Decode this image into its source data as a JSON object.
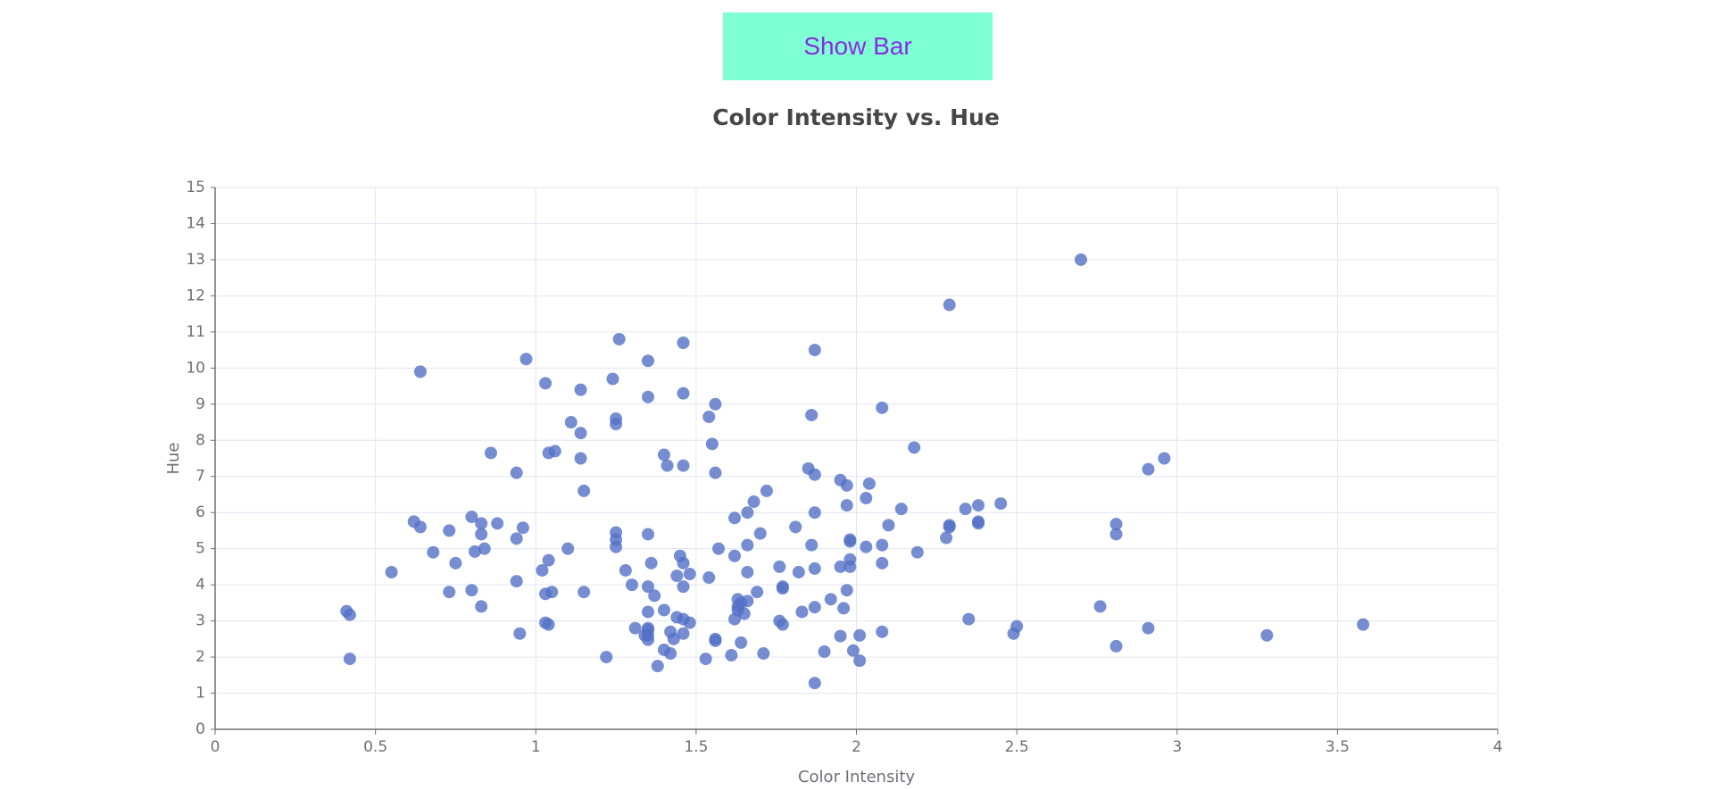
{
  "toggle_button": {
    "label": "Show Bar"
  },
  "chart_data": {
    "type": "scatter",
    "title": "Color Intensity vs. Hue",
    "xlabel": "Color Intensity",
    "ylabel": "Hue",
    "xlim": [
      0,
      4
    ],
    "ylim": [
      0,
      15
    ],
    "xticks": [
      "0",
      "0.5",
      "1",
      "1.5",
      "2",
      "2.5",
      "3",
      "3.5",
      "4"
    ],
    "yticks": [
      "0",
      "1",
      "2",
      "3",
      "4",
      "5",
      "6",
      "7",
      "8",
      "9",
      "10",
      "11",
      "12",
      "13",
      "14",
      "15"
    ],
    "grid": true,
    "point_color": "#5470c6",
    "points": [
      [
        0.41,
        3.27
      ],
      [
        0.42,
        3.17
      ],
      [
        0.42,
        1.95
      ],
      [
        0.55,
        4.35
      ],
      [
        0.62,
        5.75
      ],
      [
        0.64,
        9.9
      ],
      [
        0.64,
        5.6
      ],
      [
        0.68,
        4.9
      ],
      [
        0.73,
        5.5
      ],
      [
        0.73,
        3.8
      ],
      [
        0.75,
        4.6
      ],
      [
        0.8,
        5.88
      ],
      [
        0.8,
        3.85
      ],
      [
        0.81,
        4.92
      ],
      [
        0.83,
        5.7
      ],
      [
        0.83,
        5.4
      ],
      [
        0.83,
        3.4
      ],
      [
        0.84,
        5.0
      ],
      [
        0.86,
        7.65
      ],
      [
        0.88,
        5.7
      ],
      [
        0.94,
        7.1
      ],
      [
        0.94,
        5.28
      ],
      [
        0.94,
        4.1
      ],
      [
        0.95,
        2.65
      ],
      [
        0.96,
        5.58
      ],
      [
        0.97,
        10.25
      ],
      [
        1.02,
        4.4
      ],
      [
        1.03,
        9.58
      ],
      [
        1.03,
        3.75
      ],
      [
        1.03,
        2.95
      ],
      [
        1.04,
        7.65
      ],
      [
        1.04,
        4.68
      ],
      [
        1.04,
        2.9
      ],
      [
        1.05,
        3.8
      ],
      [
        1.06,
        7.7
      ],
      [
        1.1,
        5.0
      ],
      [
        1.11,
        8.5
      ],
      [
        1.14,
        9.4
      ],
      [
        1.14,
        8.2
      ],
      [
        1.14,
        7.5
      ],
      [
        1.15,
        6.6
      ],
      [
        1.15,
        3.8
      ],
      [
        1.22,
        2.0
      ],
      [
        1.24,
        9.7
      ],
      [
        1.25,
        8.6
      ],
      [
        1.25,
        8.45
      ],
      [
        1.25,
        5.45
      ],
      [
        1.25,
        5.25
      ],
      [
        1.25,
        5.05
      ],
      [
        1.26,
        10.8
      ],
      [
        1.28,
        4.4
      ],
      [
        1.3,
        4.0
      ],
      [
        1.31,
        2.8
      ],
      [
        1.34,
        2.6
      ],
      [
        1.35,
        10.2
      ],
      [
        1.35,
        9.2
      ],
      [
        1.35,
        5.4
      ],
      [
        1.35,
        3.95
      ],
      [
        1.35,
        3.25
      ],
      [
        1.35,
        2.8
      ],
      [
        1.35,
        2.75
      ],
      [
        1.35,
        2.6
      ],
      [
        1.35,
        2.48
      ],
      [
        1.36,
        4.6
      ],
      [
        1.37,
        3.7
      ],
      [
        1.38,
        1.75
      ],
      [
        1.4,
        7.6
      ],
      [
        1.4,
        3.3
      ],
      [
        1.4,
        2.2
      ],
      [
        1.41,
        7.3
      ],
      [
        1.42,
        2.7
      ],
      [
        1.42,
        2.1
      ],
      [
        1.43,
        2.5
      ],
      [
        1.44,
        4.25
      ],
      [
        1.44,
        3.1
      ],
      [
        1.45,
        4.8
      ],
      [
        1.46,
        10.7
      ],
      [
        1.46,
        9.3
      ],
      [
        1.46,
        7.3
      ],
      [
        1.46,
        4.6
      ],
      [
        1.46,
        3.95
      ],
      [
        1.46,
        3.05
      ],
      [
        1.46,
        2.65
      ],
      [
        1.48,
        4.3
      ],
      [
        1.48,
        2.95
      ],
      [
        1.53,
        1.95
      ],
      [
        1.54,
        8.65
      ],
      [
        1.54,
        4.2
      ],
      [
        1.55,
        7.9
      ],
      [
        1.56,
        9.0
      ],
      [
        1.56,
        7.1
      ],
      [
        1.56,
        2.5
      ],
      [
        1.56,
        2.45
      ],
      [
        1.57,
        5.0
      ],
      [
        1.61,
        2.05
      ],
      [
        1.62,
        5.85
      ],
      [
        1.62,
        4.8
      ],
      [
        1.62,
        3.05
      ],
      [
        1.63,
        3.6
      ],
      [
        1.63,
        3.4
      ],
      [
        1.63,
        3.3
      ],
      [
        1.64,
        3.5
      ],
      [
        1.64,
        2.4
      ],
      [
        1.65,
        3.2
      ],
      [
        1.66,
        6.0
      ],
      [
        1.66,
        5.1
      ],
      [
        1.66,
        4.35
      ],
      [
        1.66,
        3.55
      ],
      [
        1.68,
        6.3
      ],
      [
        1.69,
        3.8
      ],
      [
        1.7,
        5.42
      ],
      [
        1.71,
        2.1
      ],
      [
        1.72,
        6.6
      ],
      [
        1.76,
        4.5
      ],
      [
        1.76,
        3.0
      ],
      [
        1.77,
        3.95
      ],
      [
        1.77,
        3.9
      ],
      [
        1.77,
        2.9
      ],
      [
        1.81,
        5.6
      ],
      [
        1.82,
        4.35
      ],
      [
        1.83,
        3.25
      ],
      [
        1.85,
        7.22
      ],
      [
        1.86,
        8.7
      ],
      [
        1.86,
        5.1
      ],
      [
        1.87,
        10.5
      ],
      [
        1.87,
        7.05
      ],
      [
        1.87,
        6.0
      ],
      [
        1.87,
        4.45
      ],
      [
        1.87,
        3.38
      ],
      [
        1.87,
        1.28
      ],
      [
        1.9,
        2.15
      ],
      [
        1.92,
        3.6
      ],
      [
        1.95,
        6.9
      ],
      [
        1.95,
        4.5
      ],
      [
        1.95,
        2.58
      ],
      [
        1.96,
        3.35
      ],
      [
        1.97,
        6.75
      ],
      [
        1.97,
        6.2
      ],
      [
        1.97,
        3.85
      ],
      [
        1.98,
        5.25
      ],
      [
        1.98,
        5.2
      ],
      [
        1.98,
        4.7
      ],
      [
        1.98,
        4.5
      ],
      [
        1.99,
        2.18
      ],
      [
        2.01,
        2.6
      ],
      [
        2.01,
        1.9
      ],
      [
        2.03,
        6.4
      ],
      [
        2.03,
        5.05
      ],
      [
        2.04,
        6.8
      ],
      [
        2.08,
        8.9
      ],
      [
        2.08,
        5.1
      ],
      [
        2.08,
        4.6
      ],
      [
        2.08,
        2.7
      ],
      [
        2.1,
        5.65
      ],
      [
        2.14,
        6.1
      ],
      [
        2.18,
        7.8
      ],
      [
        2.19,
        4.9
      ],
      [
        2.28,
        5.3
      ],
      [
        2.29,
        11.75
      ],
      [
        2.29,
        5.65
      ],
      [
        2.29,
        5.6
      ],
      [
        2.34,
        6.1
      ],
      [
        2.35,
        3.05
      ],
      [
        2.38,
        6.2
      ],
      [
        2.38,
        5.75
      ],
      [
        2.38,
        5.7
      ],
      [
        2.45,
        6.25
      ],
      [
        2.49,
        2.65
      ],
      [
        2.5,
        2.85
      ],
      [
        2.7,
        13.0
      ],
      [
        2.76,
        3.4
      ],
      [
        2.81,
        5.68
      ],
      [
        2.81,
        5.4
      ],
      [
        2.81,
        2.3
      ],
      [
        2.91,
        7.2
      ],
      [
        2.91,
        2.8
      ],
      [
        2.96,
        7.5
      ],
      [
        3.28,
        2.6
      ],
      [
        3.58,
        2.9
      ]
    ]
  }
}
